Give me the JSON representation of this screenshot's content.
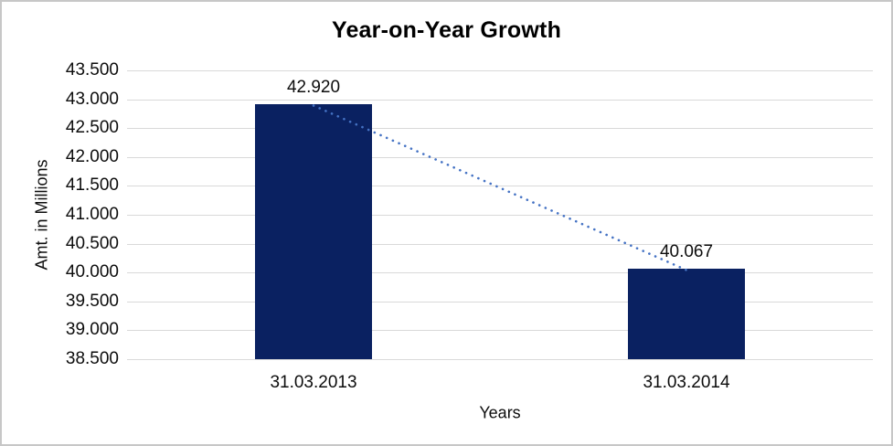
{
  "chart_data": {
    "type": "bar",
    "title": "Year-on-Year Growth",
    "xlabel": "Years",
    "ylabel": "Amt. in Millions",
    "categories": [
      "31.03.2013",
      "31.03.2014"
    ],
    "values": [
      42.92,
      40.067
    ],
    "data_labels": [
      "42.920",
      "40.067"
    ],
    "ylim": [
      38.5,
      43.5
    ],
    "ytick_step": 0.5,
    "ytick_labels_top_to_bottom": [
      "43.500",
      "43.000",
      "42.500",
      "42.000",
      "41.500",
      "41.000",
      "40.500",
      "40.000",
      "39.500",
      "39.000",
      "38.500"
    ],
    "grid": "horizontal-major",
    "legend": "none",
    "bar_color": "#0a2161",
    "trendline": {
      "type": "linear",
      "style": "dotted",
      "color": "#4472c4"
    },
    "gridline_color": "#d9d9d9",
    "text_color": "#0d0d0d"
  }
}
